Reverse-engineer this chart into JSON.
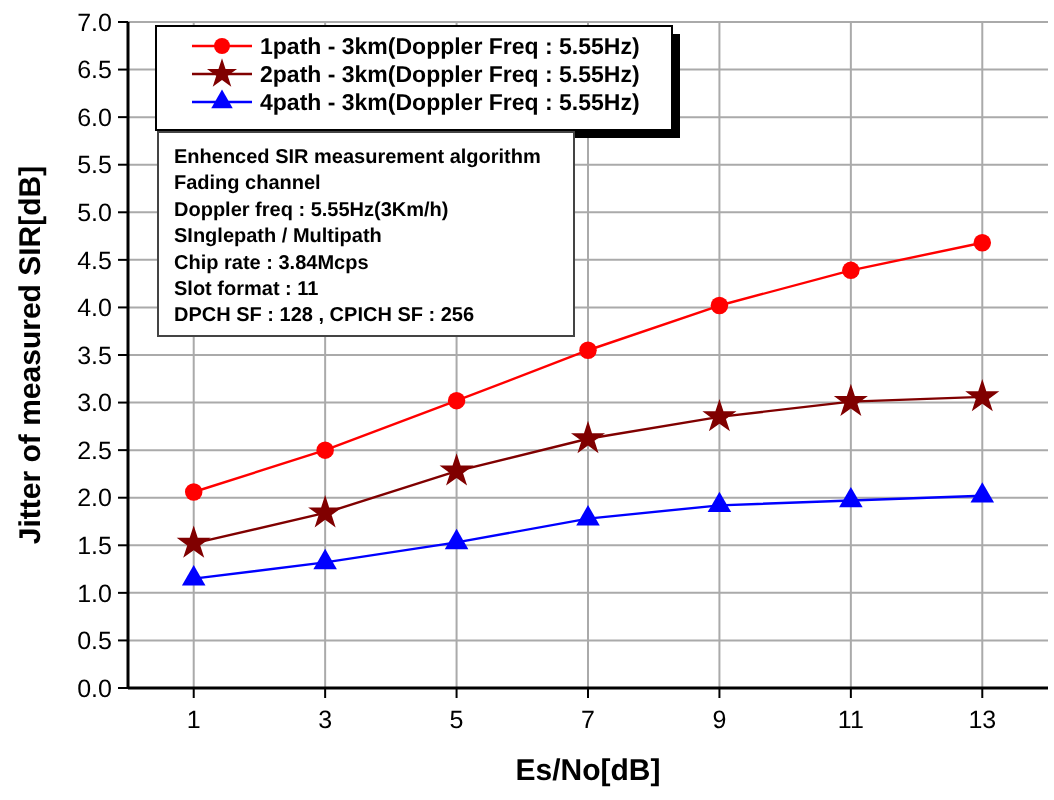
{
  "chart_data": {
    "type": "line",
    "xlabel": "Es/No[dB]",
    "ylabel": "Jitter of measured SIR[dB]",
    "x": [
      1,
      3,
      5,
      7,
      9,
      11,
      13
    ],
    "series": [
      {
        "name": "1path - 3km(Doppler Freq : 5.55Hz)",
        "color": "#ff0000",
        "marker": "circle",
        "values": [
          2.06,
          2.5,
          3.02,
          3.55,
          4.02,
          4.39,
          4.68
        ]
      },
      {
        "name": "2path - 3km(Doppler Freq : 5.55Hz)",
        "color": "#800000",
        "marker": "star",
        "values": [
          1.52,
          1.84,
          2.28,
          2.62,
          2.85,
          3.01,
          3.06
        ]
      },
      {
        "name": "4path - 3km(Doppler Freq : 5.55Hz)",
        "color": "#0000ff",
        "marker": "triangle",
        "values": [
          1.15,
          1.32,
          1.53,
          1.78,
          1.92,
          1.97,
          2.02
        ]
      }
    ],
    "annotations": [
      "Enhenced SIR measurement algorithm",
      "Fading channel",
      "Doppler freq : 5.55Hz(3Km/h)",
      "SInglepath / Multipath",
      "Chip rate : 3.84Mcps",
      "Slot format  : 11",
      "DPCH SF : 128 , CPICH SF : 256"
    ],
    "xlim": [
      0,
      14
    ],
    "xticks": [
      1,
      3,
      5,
      7,
      9,
      11,
      13
    ],
    "ylim": [
      0,
      7
    ],
    "yticks": [
      {
        "value": 0,
        "label": "0.0"
      },
      {
        "value": 0.5,
        "label": "0.5"
      },
      {
        "value": 1,
        "label": "1.0"
      },
      {
        "value": 1.5,
        "label": "1.5"
      },
      {
        "value": 2,
        "label": "2.0"
      },
      {
        "value": 2.5,
        "label": "2.5"
      },
      {
        "value": 3,
        "label": "3.0"
      },
      {
        "value": 3.5,
        "label": "3.5"
      },
      {
        "value": 4,
        "label": "4.0"
      },
      {
        "value": 4.5,
        "label": "4.5"
      },
      {
        "value": 5,
        "label": "5.0"
      },
      {
        "value": 5.5,
        "label": "5.5"
      },
      {
        "value": 6,
        "label": "6.0"
      },
      {
        "value": 6.5,
        "label": "6.5"
      },
      {
        "value": 7,
        "label": "7.0"
      }
    ],
    "grid": true,
    "legend": "top left",
    "line_style": "solid"
  }
}
